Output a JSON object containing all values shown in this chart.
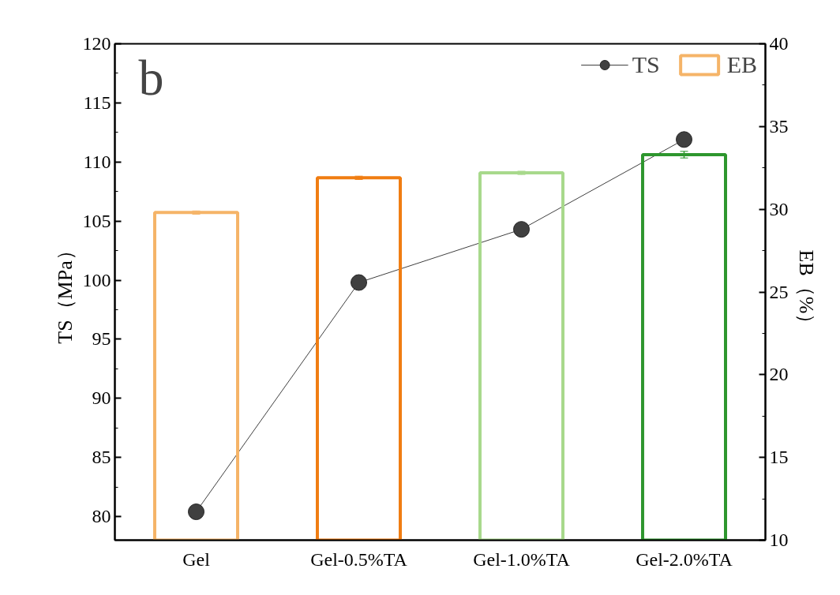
{
  "chart_data": {
    "type": "bar",
    "categories": [
      "Gel",
      "Gel-0.5%TA",
      "Gel-1.0%TA",
      "Gel-2.0%TA"
    ],
    "series": [
      {
        "name": "TS",
        "type": "line",
        "color": "#404040",
        "values": [
          80.4,
          99.8,
          104.3,
          111.9
        ],
        "marker": "circle"
      },
      {
        "name": "EB",
        "axis": "y2",
        "colors": [
          "#f5b468",
          "#f07d12",
          "#a8d98c",
          "#2e962e"
        ],
        "values": [
          29.8,
          31.9,
          32.2,
          33.3
        ],
        "errors": [
          0.1,
          0.1,
          0.1,
          0.2
        ]
      }
    ],
    "ylabel": "TS（MPa）",
    "y2label": "EB（%）",
    "ylim": [
      78,
      120
    ],
    "yticks": [
      80,
      85,
      90,
      95,
      100,
      105,
      110,
      115,
      120
    ],
    "y2lim": [
      10,
      40
    ],
    "y2ticks": [
      10,
      15,
      20,
      25,
      30,
      35,
      40
    ],
    "legend": "top right",
    "grid": false,
    "annotations": [
      "b"
    ]
  }
}
